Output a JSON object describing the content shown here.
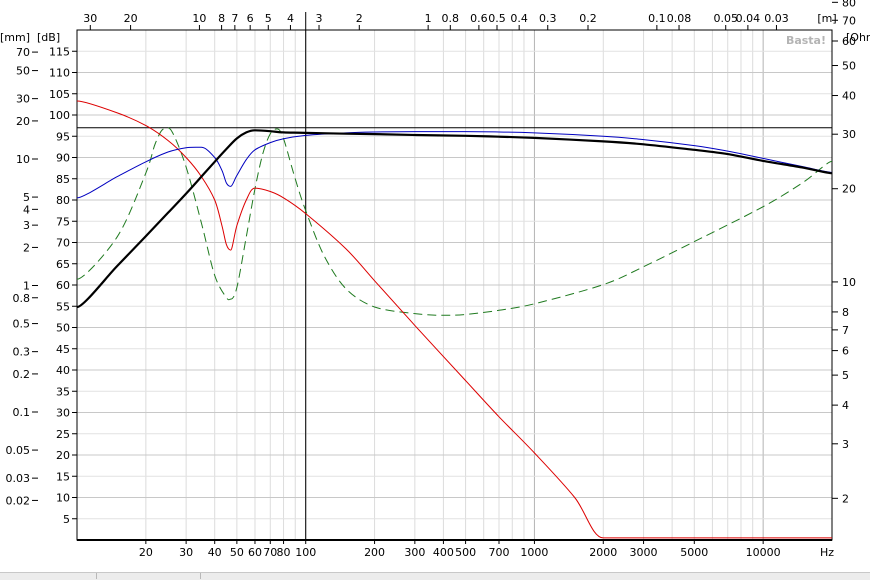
{
  "chart_data": {
    "type": "line",
    "watermark": "Basta!",
    "x_axis_bottom": {
      "unit": "Hz",
      "scale": "log",
      "range": [
        10,
        20000
      ],
      "tick_labels": [
        "20",
        "30",
        "40",
        "50",
        "60",
        "70",
        "80",
        "100",
        "200",
        "300",
        "400",
        "500",
        "700",
        "1000",
        "2000",
        "3000",
        "5000",
        "10000"
      ]
    },
    "x_axis_top": {
      "unit": "[m]",
      "scale": "wavelength (log)",
      "tick_labels": [
        "30",
        "20",
        "10",
        "8",
        "7",
        "6",
        "5",
        "4",
        "3",
        "2",
        "1",
        "0.8",
        "0.6",
        "0.5",
        "0.4",
        "0.3",
        "0.2",
        "0.1",
        "0.08",
        "0.05",
        "0.04",
        "0.03"
      ]
    },
    "y_axis_db": {
      "unit": "[dB]",
      "range": [
        0,
        120
      ],
      "tick_labels": [
        "5",
        "10",
        "15",
        "20",
        "25",
        "30",
        "35",
        "40",
        "45",
        "50",
        "55",
        "60",
        "65",
        "70",
        "75",
        "80",
        "85",
        "90",
        "95",
        "100",
        "105",
        "110",
        "115"
      ]
    },
    "y_axis_mm": {
      "unit": "[mm]",
      "scale": "log",
      "tick_labels": [
        "0.02",
        "0.03",
        "0.05",
        "0.1",
        "0.2",
        "0.3",
        "0.5",
        "0.8",
        "1",
        "2",
        "3",
        "4",
        "5",
        "10",
        "20",
        "30",
        "50",
        "70"
      ]
    },
    "y_axis_ohm": {
      "unit": "[Ohm]",
      "scale": "log",
      "tick_labels": [
        "2",
        "3",
        "4",
        "5",
        "6",
        "7",
        "8",
        "10",
        "20",
        "30",
        "40",
        "50",
        "60",
        "70",
        "80"
      ]
    },
    "reference_lines": {
      "vertical_hz": 100,
      "horizontal_db": 97
    },
    "series": [
      {
        "color": "#000000",
        "style": "solid-thick",
        "axis": "dB",
        "x": [
          10,
          15,
          20,
          25,
          30,
          35,
          40,
          45,
          50,
          55,
          60,
          70,
          80,
          100,
          150,
          200,
          300,
          500,
          700,
          1000,
          2000,
          3000,
          5000,
          7000,
          10000,
          15000,
          20000
        ],
        "y": [
          54.8,
          64.5,
          71.5,
          77,
          81.5,
          85.5,
          89,
          92,
          94.5,
          95.9,
          96.4,
          96.2,
          95.9,
          95.8,
          95.6,
          95.5,
          95.3,
          95.1,
          94.9,
          94.6,
          93.8,
          93.1,
          91.8,
          90.8,
          89.2,
          87.6,
          86.3
        ]
      },
      {
        "color": "#0000c0",
        "style": "solid-thin",
        "axis": "dB",
        "x": [
          10,
          15,
          20,
          25,
          30,
          35,
          40,
          43,
          45,
          47,
          50,
          55,
          60,
          70,
          80,
          100,
          150,
          200,
          300,
          500,
          700,
          1000,
          2000,
          3000,
          5000,
          7000,
          10000,
          15000,
          20000
        ],
        "y": [
          80.5,
          85.5,
          89,
          91.3,
          92.3,
          92.4,
          90,
          87,
          84,
          83.2,
          85.8,
          89.5,
          91.8,
          93.5,
          94.4,
          95.2,
          95.8,
          96,
          96.1,
          96.1,
          96,
          95.8,
          95,
          94.2,
          92.8,
          91.5,
          89.8,
          87.8,
          86.5
        ]
      },
      {
        "color": "#dd0000",
        "style": "solid-thin",
        "axis": "dB",
        "x": [
          10,
          15,
          20,
          25,
          30,
          35,
          40,
          43,
          45,
          47,
          50,
          55,
          60,
          70,
          80,
          100,
          150,
          200,
          300,
          500,
          700,
          1000,
          1500,
          2000,
          3000,
          5000,
          10000,
          20000
        ],
        "y": [
          103.3,
          100.5,
          97.5,
          94,
          90,
          85.5,
          80,
          74,
          69.5,
          68.2,
          74,
          80,
          82.8,
          82,
          80.5,
          76.8,
          68.5,
          61,
          50.5,
          37.5,
          29,
          20.5,
          10,
          0.5,
          0.5,
          0.5,
          0.5,
          0.5
        ]
      },
      {
        "color": "#1f7a1f",
        "style": "dashed",
        "axis": "Ohm",
        "x": [
          10,
          15,
          20,
          22,
          24,
          26,
          30,
          35,
          40,
          45,
          47,
          50,
          55,
          60,
          65,
          70,
          75,
          80,
          90,
          100,
          120,
          150,
          200,
          300,
          400,
          500,
          700,
          1000,
          2000,
          3000,
          5000,
          10000,
          15000,
          20000
        ],
        "y": [
          10.2,
          14,
          22.5,
          28,
          31.2,
          30.6,
          23.5,
          15.5,
          10.5,
          8.9,
          8.8,
          9.6,
          14,
          20,
          26,
          30.1,
          31.2,
          29,
          21.5,
          17,
          12.2,
          9.5,
          8.3,
          7.9,
          7.8,
          7.85,
          8.1,
          8.5,
          9.8,
          11.2,
          13.5,
          17.5,
          21,
          24.5
        ]
      }
    ]
  }
}
